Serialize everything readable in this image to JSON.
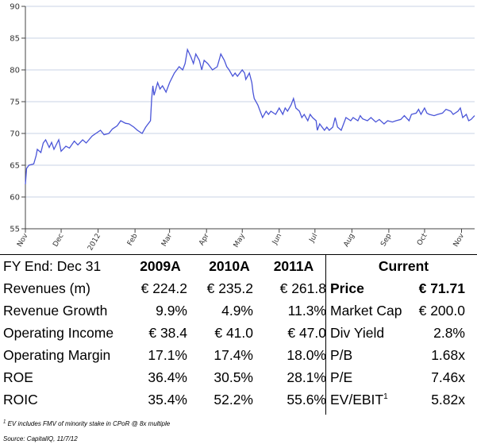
{
  "chart_data": {
    "type": "line",
    "title": "",
    "xlabel": "",
    "ylabel": "",
    "ylim": [
      55,
      90
    ],
    "yticks": [
      55,
      60,
      65,
      70,
      75,
      80,
      85,
      90
    ],
    "xlim": [
      "2011-11-01",
      "2012-11-12"
    ],
    "xticks": [
      {
        "date": "2011-11-01",
        "label": "Nov"
      },
      {
        "date": "2011-12-01",
        "label": "Dec"
      },
      {
        "date": "2012-01-01",
        "label": "2012"
      },
      {
        "date": "2012-02-01",
        "label": "Feb"
      },
      {
        "date": "2012-03-01",
        "label": "Mar"
      },
      {
        "date": "2012-04-01",
        "label": "Apr"
      },
      {
        "date": "2012-05-01",
        "label": "May"
      },
      {
        "date": "2012-06-01",
        "label": "Jun"
      },
      {
        "date": "2012-07-01",
        "label": "Jul"
      },
      {
        "date": "2012-08-01",
        "label": "Aug"
      },
      {
        "date": "2012-09-01",
        "label": "Sep"
      },
      {
        "date": "2012-10-01",
        "label": "Oct"
      },
      {
        "date": "2012-11-01",
        "label": "Nov"
      }
    ],
    "grid": true,
    "series": [
      {
        "color": "#4a55d8",
        "points": [
          [
            "2011-11-01",
            62.0
          ],
          [
            "2011-11-02",
            64.5
          ],
          [
            "2011-11-04",
            65.0
          ],
          [
            "2011-11-08",
            65.2
          ],
          [
            "2011-11-10",
            66.5
          ],
          [
            "2011-11-11",
            67.5
          ],
          [
            "2011-11-14",
            67.0
          ],
          [
            "2011-11-16",
            68.5
          ],
          [
            "2011-11-18",
            69.0
          ],
          [
            "2011-11-21",
            67.8
          ],
          [
            "2011-11-23",
            68.6
          ],
          [
            "2011-11-25",
            67.5
          ],
          [
            "2011-11-29",
            69.0
          ],
          [
            "2011-12-01",
            67.2
          ],
          [
            "2011-12-05",
            68.0
          ],
          [
            "2011-12-08",
            67.7
          ],
          [
            "2011-12-12",
            68.8
          ],
          [
            "2011-12-15",
            68.2
          ],
          [
            "2011-12-19",
            69.0
          ],
          [
            "2011-12-22",
            68.5
          ],
          [
            "2011-12-27",
            69.6
          ],
          [
            "2012-01-03",
            70.5
          ],
          [
            "2012-01-06",
            69.8
          ],
          [
            "2012-01-10",
            70.0
          ],
          [
            "2012-01-13",
            70.7
          ],
          [
            "2012-01-17",
            71.2
          ],
          [
            "2012-01-20",
            72.0
          ],
          [
            "2012-01-24",
            71.6
          ],
          [
            "2012-01-27",
            71.5
          ],
          [
            "2012-01-31",
            71.0
          ],
          [
            "2012-02-03",
            70.5
          ],
          [
            "2012-02-07",
            70.0
          ],
          [
            "2012-02-10",
            71.0
          ],
          [
            "2012-02-14",
            72.0
          ],
          [
            "2012-02-15",
            75.5
          ],
          [
            "2012-02-16",
            77.5
          ],
          [
            "2012-02-17",
            76.0
          ],
          [
            "2012-02-20",
            78.0
          ],
          [
            "2012-02-22",
            77.0
          ],
          [
            "2012-02-24",
            77.5
          ],
          [
            "2012-02-27",
            76.5
          ],
          [
            "2012-03-01",
            78.0
          ],
          [
            "2012-03-05",
            79.5
          ],
          [
            "2012-03-07",
            80.0
          ],
          [
            "2012-03-09",
            80.5
          ],
          [
            "2012-03-12",
            80.0
          ],
          [
            "2012-03-14",
            81.0
          ],
          [
            "2012-03-16",
            83.2
          ],
          [
            "2012-03-19",
            82.0
          ],
          [
            "2012-03-21",
            81.0
          ],
          [
            "2012-03-23",
            82.5
          ],
          [
            "2012-03-26",
            81.5
          ],
          [
            "2012-03-28",
            80.0
          ],
          [
            "2012-03-30",
            81.5
          ],
          [
            "2012-04-02",
            81.0
          ],
          [
            "2012-04-04",
            80.5
          ],
          [
            "2012-04-06",
            80.0
          ],
          [
            "2012-04-10",
            80.5
          ],
          [
            "2012-04-12",
            81.8
          ],
          [
            "2012-04-13",
            82.5
          ],
          [
            "2012-04-16",
            81.5
          ],
          [
            "2012-04-18",
            80.5
          ],
          [
            "2012-04-20",
            80.0
          ],
          [
            "2012-04-23",
            79.0
          ],
          [
            "2012-04-25",
            79.5
          ],
          [
            "2012-04-27",
            79.0
          ],
          [
            "2012-05-01",
            80.0
          ],
          [
            "2012-05-03",
            79.5
          ],
          [
            "2012-05-04",
            78.5
          ],
          [
            "2012-05-07",
            79.5
          ],
          [
            "2012-05-09",
            78.0
          ],
          [
            "2012-05-10",
            76.5
          ],
          [
            "2012-05-11",
            75.5
          ],
          [
            "2012-05-14",
            74.5
          ],
          [
            "2012-05-16",
            73.5
          ],
          [
            "2012-05-18",
            72.5
          ],
          [
            "2012-05-21",
            73.5
          ],
          [
            "2012-05-23",
            73.0
          ],
          [
            "2012-05-25",
            73.5
          ],
          [
            "2012-05-29",
            73.0
          ],
          [
            "2012-06-01",
            74.0
          ],
          [
            "2012-06-04",
            73.0
          ],
          [
            "2012-06-06",
            74.0
          ],
          [
            "2012-06-08",
            73.5
          ],
          [
            "2012-06-11",
            74.5
          ],
          [
            "2012-06-13",
            75.5
          ],
          [
            "2012-06-15",
            74.0
          ],
          [
            "2012-06-18",
            73.5
          ],
          [
            "2012-06-20",
            72.5
          ],
          [
            "2012-06-22",
            73.0
          ],
          [
            "2012-06-25",
            72.0
          ],
          [
            "2012-06-27",
            73.0
          ],
          [
            "2012-06-29",
            72.5
          ],
          [
            "2012-07-02",
            72.0
          ],
          [
            "2012-07-03",
            70.5
          ],
          [
            "2012-07-05",
            71.5
          ],
          [
            "2012-07-09",
            70.5
          ],
          [
            "2012-07-11",
            71.0
          ],
          [
            "2012-07-13",
            70.5
          ],
          [
            "2012-07-16",
            71.0
          ],
          [
            "2012-07-18",
            72.5
          ],
          [
            "2012-07-20",
            71.0
          ],
          [
            "2012-07-23",
            70.5
          ],
          [
            "2012-07-25",
            71.5
          ],
          [
            "2012-07-27",
            72.5
          ],
          [
            "2012-07-31",
            72.0
          ],
          [
            "2012-08-02",
            72.5
          ],
          [
            "2012-08-06",
            72.0
          ],
          [
            "2012-08-08",
            72.8
          ],
          [
            "2012-08-10",
            72.3
          ],
          [
            "2012-08-14",
            72.0
          ],
          [
            "2012-08-17",
            72.5
          ],
          [
            "2012-08-21",
            71.8
          ],
          [
            "2012-08-24",
            72.2
          ],
          [
            "2012-08-28",
            71.5
          ],
          [
            "2012-08-31",
            72.0
          ],
          [
            "2012-09-04",
            71.8
          ],
          [
            "2012-09-07",
            72.0
          ],
          [
            "2012-09-11",
            72.2
          ],
          [
            "2012-09-14",
            72.8
          ],
          [
            "2012-09-18",
            72.0
          ],
          [
            "2012-09-20",
            73.0
          ],
          [
            "2012-09-24",
            73.2
          ],
          [
            "2012-09-26",
            73.8
          ],
          [
            "2012-09-28",
            73.0
          ],
          [
            "2012-10-01",
            74.0
          ],
          [
            "2012-10-03",
            73.2
          ],
          [
            "2012-10-05",
            73.0
          ],
          [
            "2012-10-09",
            72.8
          ],
          [
            "2012-10-12",
            73.0
          ],
          [
            "2012-10-16",
            73.2
          ],
          [
            "2012-10-19",
            73.8
          ],
          [
            "2012-10-23",
            73.5
          ],
          [
            "2012-10-25",
            73.0
          ],
          [
            "2012-10-29",
            73.5
          ],
          [
            "2012-10-31",
            74.0
          ],
          [
            "2012-11-02",
            72.5
          ],
          [
            "2012-11-05",
            73.0
          ],
          [
            "2012-11-07",
            72.0
          ],
          [
            "2012-11-09",
            72.2
          ],
          [
            "2012-11-12",
            72.8
          ]
        ]
      }
    ]
  },
  "table": {
    "header": {
      "label": "FY End: Dec 31",
      "y1": "2009A",
      "y2": "2010A",
      "y3": "2011A",
      "current": "Current"
    },
    "rows": [
      {
        "label": "Revenues (m)",
        "y1": "€ 224.2",
        "y2": "€ 235.2",
        "y3": "€ 261.8",
        "mlabel": "Price",
        "mvalue": "€ 71.71",
        "bold": true
      },
      {
        "label": "Revenue Growth",
        "y1": "9.9%",
        "y2": "4.9%",
        "y3": "11.3%",
        "mlabel": "Market Cap",
        "mvalue": "€ 200.0"
      },
      {
        "label": "Operating Income",
        "y1": "€ 38.4",
        "y2": "€ 41.0",
        "y3": "€ 47.0",
        "mlabel": "Div Yield",
        "mvalue": "2.8%"
      },
      {
        "label": "Operating Margin",
        "y1": "17.1%",
        "y2": "17.4%",
        "y3": "18.0%",
        "mlabel": "P/B",
        "mvalue": "1.68x"
      },
      {
        "label": "ROE",
        "y1": "36.4%",
        "y2": "30.5%",
        "y3": "28.1%",
        "mlabel": "P/E",
        "mvalue": "7.46x"
      },
      {
        "label": "ROIC",
        "y1": "35.4%",
        "y2": "52.2%",
        "y3": "55.6%",
        "mlabel": "EV/EBIT",
        "mlabel_sup": "1",
        "mvalue": "5.82x"
      }
    ]
  },
  "footnotes": {
    "note_marker": "1",
    "note": "EV includes FMV of minority stake in CPoR @ 8x multiple",
    "source": "Source: CapitalIQ, 11/7/12"
  }
}
